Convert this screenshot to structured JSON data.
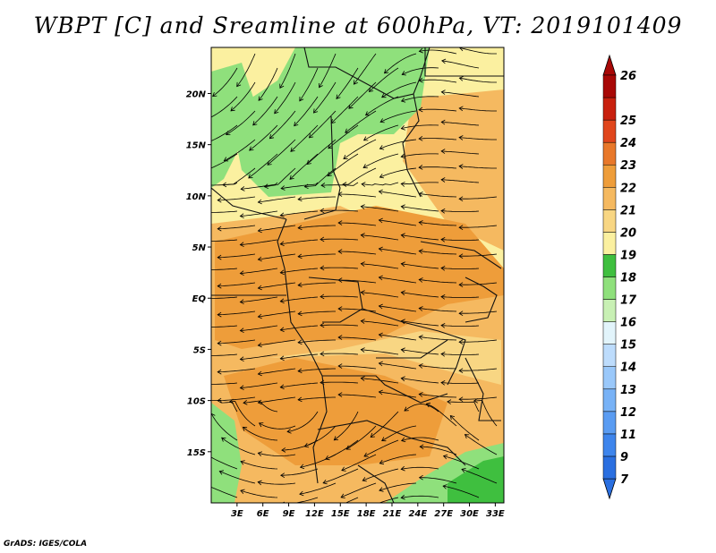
{
  "title": "WBPT [C] and Sreamline at 600hPa, VT: 2019101409",
  "footer": "GrADS: IGES/COLA",
  "map": {
    "lat_ticks": [
      "20N",
      "15N",
      "10N",
      "5N",
      "EQ",
      "5S",
      "10S",
      "15S"
    ],
    "lon_ticks": [
      "3E",
      "6E",
      "9E",
      "12E",
      "15E",
      "18E",
      "21E",
      "24E",
      "27E",
      "30E",
      "33E"
    ],
    "lon_range": [
      0,
      34
    ],
    "lat_range": [
      -20,
      24.5
    ]
  },
  "colorbar": {
    "labels": [
      "7",
      "9",
      "11",
      "12",
      "13",
      "14",
      "15",
      "16",
      "17",
      "18",
      "19",
      "20",
      "21",
      "22",
      "23",
      "24",
      "25",
      "26"
    ],
    "colors": [
      "#2a6fe0",
      "#3e85ec",
      "#5a9cf2",
      "#78b2f6",
      "#9ac8fa",
      "#bddcfc",
      "#e2f4fb",
      "#c8f0b4",
      "#8fe07c",
      "#3fbf3f",
      "#fbf0a0",
      "#f8d683",
      "#f5b960",
      "#ee9d3a",
      "#e8782a",
      "#e0461c",
      "#c8200e",
      "#a80806"
    ],
    "units": "C"
  }
}
